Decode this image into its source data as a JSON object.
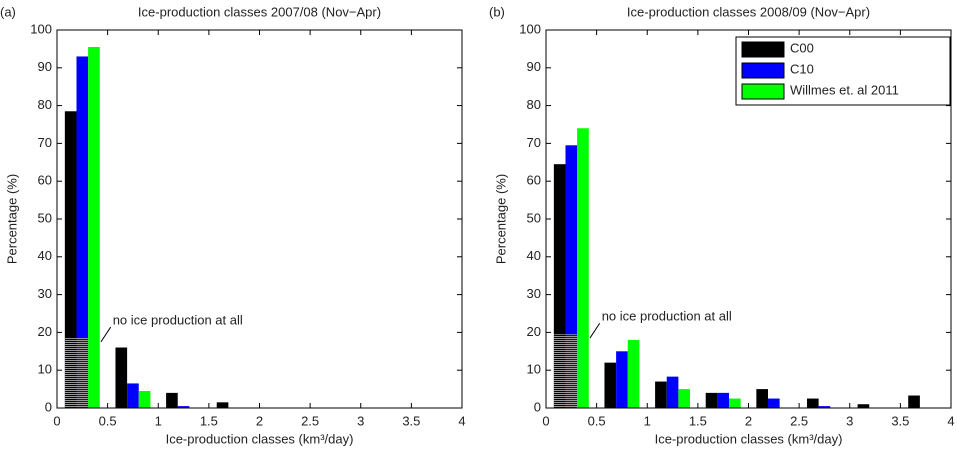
{
  "chart_data": [
    {
      "type": "bar",
      "panel_label": "(a)",
      "title": "Ice-production classes 2007/08 (Nov−Apr)",
      "xlabel": "Ice-production classes (km³/day)",
      "ylabel": "Percentage (%)",
      "x": [
        0.25,
        0.75,
        1.25,
        1.75,
        2.25,
        2.75,
        3.25,
        3.75
      ],
      "xlim": [
        0,
        4
      ],
      "xticks": [
        0,
        0.5,
        1,
        1.5,
        2,
        2.5,
        3,
        3.5,
        4
      ],
      "ylim": [
        0,
        100
      ],
      "yticks": [
        0,
        10,
        20,
        30,
        40,
        50,
        60,
        70,
        80,
        90,
        100
      ],
      "series": [
        {
          "color": "#000000",
          "values": [
            78.5,
            16,
            4,
            1.5,
            0,
            0,
            0,
            0
          ]
        },
        {
          "color": "#0000ff",
          "values": [
            93,
            6.5,
            0.5,
            0,
            0,
            0,
            0,
            0
          ]
        },
        {
          "color": "#00ff00",
          "values": [
            95.5,
            4.5,
            0,
            0,
            0,
            0,
            0,
            0
          ]
        }
      ],
      "annotation": {
        "text": "no ice production at all",
        "value": 18.5
      }
    },
    {
      "type": "bar",
      "panel_label": "(b)",
      "title": "Ice-production classes 2008/09 (Nov−Apr)",
      "xlabel": "Ice-production classes (km³/day)",
      "ylabel": "Percentage (%)",
      "x": [
        0.25,
        0.75,
        1.25,
        1.75,
        2.25,
        2.75,
        3.25,
        3.75
      ],
      "xlim": [
        0,
        4
      ],
      "xticks": [
        0,
        0.5,
        1,
        1.5,
        2,
        2.5,
        3,
        3.5,
        4
      ],
      "ylim": [
        0,
        100
      ],
      "yticks": [
        0,
        10,
        20,
        30,
        40,
        50,
        60,
        70,
        80,
        90,
        100
      ],
      "legend": "upper right",
      "series": [
        {
          "name": "C00",
          "color": "#000000",
          "values": [
            64.5,
            12,
            7,
            4,
            5,
            2.5,
            1,
            3.3
          ]
        },
        {
          "name": "C10",
          "color": "#0000ff",
          "values": [
            69.5,
            15,
            8.3,
            4,
            2.5,
            0.5,
            0,
            0
          ]
        },
        {
          "name": "Willmes et. al 2011",
          "color": "#00ff00",
          "values": [
            74,
            18,
            5,
            2.5,
            0,
            0,
            0,
            0
          ]
        }
      ],
      "annotation": {
        "text": "no ice production at all",
        "value": 19.5
      }
    }
  ]
}
